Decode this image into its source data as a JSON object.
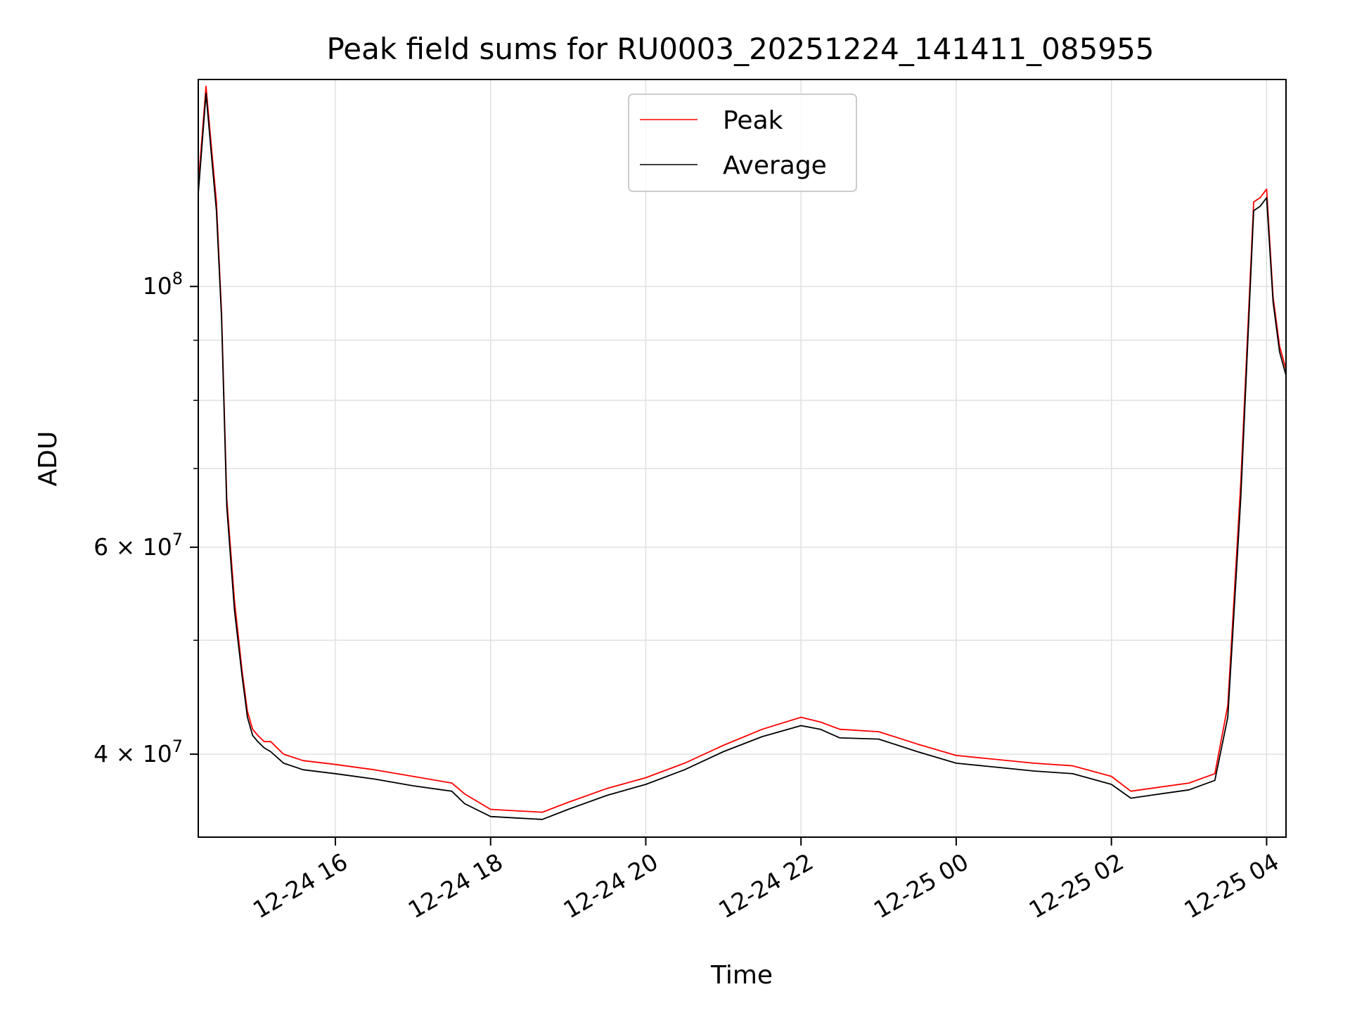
{
  "chart_data": {
    "type": "line",
    "title": "Peak field sums for RU0003_20251224_141411_085955",
    "xlabel": "Time",
    "ylabel": "ADU",
    "yscale": "log",
    "grid": true,
    "legend_position": "top-center",
    "x_tick_labels": [
      "12-24 16",
      "12-24 18",
      "12-24 20",
      "12-24 22",
      "12-25 00",
      "12-25 02",
      "12-25 04"
    ],
    "y_tick_labels": [
      {
        "value": 40000000,
        "base": "4 × 10",
        "exp": "7"
      },
      {
        "value": 60000000,
        "base": "6 × 10",
        "exp": "7"
      },
      {
        "value": 100000000,
        "base": "10",
        "exp": "8"
      }
    ],
    "xlim": [
      "2025-12-24 14:14",
      "2025-12-25 04:15"
    ],
    "ylim": [
      34000000,
      150000000
    ],
    "series": [
      {
        "name": "Peak",
        "color": "#ff0000",
        "x": [
          "2025-12-24 14:14",
          "2025-12-24 14:20",
          "2025-12-24 14:24",
          "2025-12-24 14:28",
          "2025-12-24 14:32",
          "2025-12-24 14:36",
          "2025-12-24 14:42",
          "2025-12-24 14:48",
          "2025-12-24 14:52",
          "2025-12-24 14:56",
          "2025-12-24 15:00",
          "2025-12-24 15:05",
          "2025-12-24 15:10",
          "2025-12-24 15:20",
          "2025-12-24 15:35",
          "2025-12-24 16:00",
          "2025-12-24 16:30",
          "2025-12-24 17:00",
          "2025-12-24 17:30",
          "2025-12-24 17:40",
          "2025-12-24 18:00",
          "2025-12-24 18:20",
          "2025-12-24 18:40",
          "2025-12-24 19:00",
          "2025-12-24 19:30",
          "2025-12-24 20:00",
          "2025-12-24 20:30",
          "2025-12-24 21:00",
          "2025-12-24 21:30",
          "2025-12-24 22:00",
          "2025-12-24 22:15",
          "2025-12-24 22:30",
          "2025-12-24 23:00",
          "2025-12-24 23:30",
          "2025-12-25 00:00",
          "2025-12-25 00:30",
          "2025-12-25 01:00",
          "2025-12-25 01:30",
          "2025-12-25 02:00",
          "2025-12-25 02:15",
          "2025-12-25 02:30",
          "2025-12-25 03:00",
          "2025-12-25 03:20",
          "2025-12-25 03:30",
          "2025-12-25 03:40",
          "2025-12-25 03:50",
          "2025-12-25 03:55",
          "2025-12-25 04:00",
          "2025-12-25 04:05",
          "2025-12-25 04:10",
          "2025-12-25 04:15"
        ],
        "y": [
          122000000,
          148000000,
          132000000,
          118000000,
          95000000,
          66000000,
          54000000,
          47000000,
          43500000,
          42000000,
          41500000,
          41000000,
          41000000,
          40000000,
          39500000,
          39200000,
          38800000,
          38300000,
          37800000,
          37000000,
          35900000,
          35800000,
          35700000,
          36400000,
          37400000,
          38200000,
          39300000,
          40700000,
          42000000,
          43000000,
          42600000,
          42000000,
          41800000,
          40800000,
          39900000,
          39600000,
          39300000,
          39100000,
          38300000,
          37200000,
          37400000,
          37800000,
          38500000,
          44000000,
          68000000,
          118000000,
          119000000,
          121000000,
          98000000,
          89000000,
          85000000
        ]
      },
      {
        "name": "Average",
        "color": "#000000",
        "x": [
          "2025-12-24 14:14",
          "2025-12-24 14:20",
          "2025-12-24 14:24",
          "2025-12-24 14:28",
          "2025-12-24 14:32",
          "2025-12-24 14:36",
          "2025-12-24 14:42",
          "2025-12-24 14:48",
          "2025-12-24 14:52",
          "2025-12-24 14:56",
          "2025-12-24 15:00",
          "2025-12-24 15:05",
          "2025-12-24 15:10",
          "2025-12-24 15:20",
          "2025-12-24 15:35",
          "2025-12-24 16:00",
          "2025-12-24 16:30",
          "2025-12-24 17:00",
          "2025-12-24 17:30",
          "2025-12-24 17:40",
          "2025-12-24 18:00",
          "2025-12-24 18:20",
          "2025-12-24 18:40",
          "2025-12-24 19:00",
          "2025-12-24 19:30",
          "2025-12-24 20:00",
          "2025-12-24 20:30",
          "2025-12-24 21:00",
          "2025-12-24 21:30",
          "2025-12-24 22:00",
          "2025-12-24 22:15",
          "2025-12-24 22:30",
          "2025-12-24 23:00",
          "2025-12-24 23:30",
          "2025-12-25 00:00",
          "2025-12-25 00:30",
          "2025-12-25 01:00",
          "2025-12-25 01:30",
          "2025-12-25 02:00",
          "2025-12-25 02:15",
          "2025-12-25 02:30",
          "2025-12-25 03:00",
          "2025-12-25 03:20",
          "2025-12-25 03:30",
          "2025-12-25 03:40",
          "2025-12-25 03:50",
          "2025-12-25 03:55",
          "2025-12-25 04:00",
          "2025-12-25 04:05",
          "2025-12-25 04:10",
          "2025-12-25 04:15"
        ],
        "y": [
          120000000,
          146000000,
          130000000,
          116000000,
          94000000,
          65000000,
          53000000,
          46500000,
          43000000,
          41500000,
          41000000,
          40500000,
          40200000,
          39300000,
          38800000,
          38500000,
          38100000,
          37600000,
          37200000,
          36300000,
          35400000,
          35300000,
          35200000,
          35900000,
          36900000,
          37700000,
          38800000,
          40200000,
          41400000,
          42300000,
          42000000,
          41300000,
          41200000,
          40200000,
          39300000,
          39000000,
          38700000,
          38500000,
          37700000,
          36700000,
          36900000,
          37300000,
          38000000,
          43000000,
          66000000,
          116000000,
          117000000,
          119000000,
          97000000,
          88000000,
          84000000
        ]
      }
    ]
  }
}
